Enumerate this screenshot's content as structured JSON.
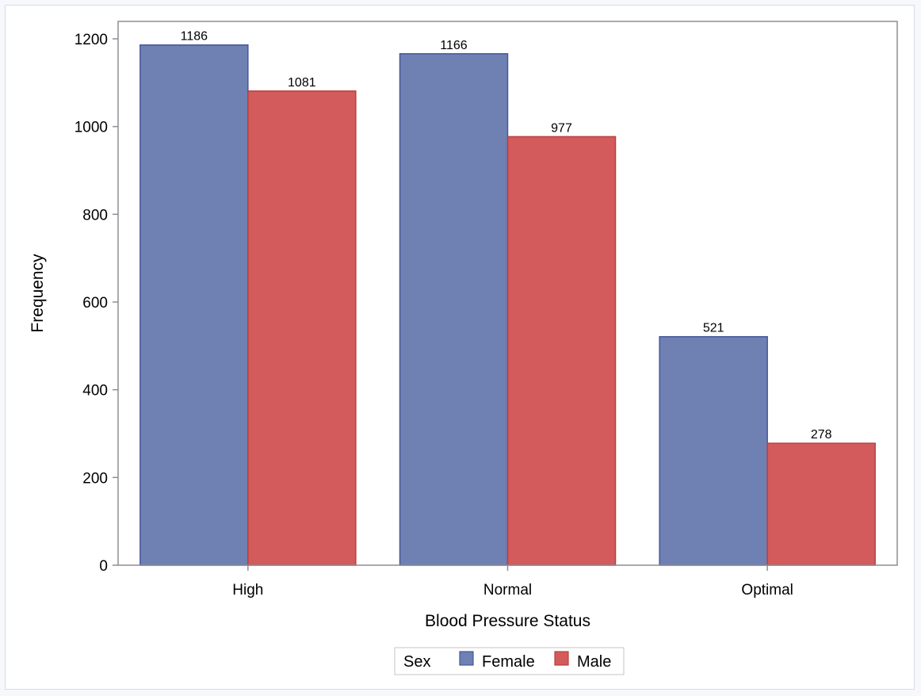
{
  "chart_data": {
    "type": "bar",
    "title": "",
    "xlabel": "Blood Pressure Status",
    "ylabel": "Frequency",
    "categories": [
      "High",
      "Normal",
      "Optimal"
    ],
    "series": [
      {
        "name": "Female",
        "values": [
          1186,
          1166,
          521
        ],
        "color": "#6f80b3"
      },
      {
        "name": "Male",
        "values": [
          1081,
          977,
          278
        ],
        "color": "#d35b5b"
      }
    ],
    "ylim": [
      0,
      1200
    ],
    "yticks": [
      0,
      200,
      400,
      600,
      800,
      1000,
      1200
    ],
    "grid": false,
    "legend": {
      "title": "Sex",
      "position": "bottom-center"
    },
    "data_labels": true
  }
}
